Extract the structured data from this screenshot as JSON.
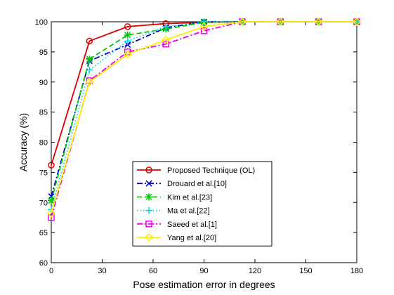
{
  "chart_data": {
    "type": "line",
    "xlabel": "Pose estimation error in degrees",
    "ylabel": "Accuracy (%)",
    "xlim": [
      0,
      180
    ],
    "ylim": [
      60,
      100
    ],
    "xticks": [
      0,
      30,
      60,
      90,
      120,
      150,
      180
    ],
    "yticks": [
      60,
      65,
      70,
      75,
      80,
      85,
      90,
      95,
      100
    ],
    "x": [
      0,
      22.5,
      45,
      67.5,
      90,
      112.5,
      135,
      157.5,
      180
    ],
    "legend_position": "bottom-center",
    "grid": false,
    "series": [
      {
        "name": "Proposed Technique (OL)",
        "color": "#dd0000",
        "dash": "solid",
        "marker": "circle",
        "values": [
          76.2,
          96.8,
          99.2,
          99.7,
          99.9,
          100,
          100,
          100,
          100
        ]
      },
      {
        "name": "Drouard et al.[10]",
        "color": "#0000cc",
        "dash": "dashdot",
        "marker": "x",
        "values": [
          71.0,
          93.5,
          96.2,
          99.0,
          100,
          100,
          100,
          100,
          100
        ]
      },
      {
        "name": "Kim et al.[23]",
        "color": "#00cc00",
        "dash": "dashed",
        "marker": "star",
        "values": [
          70.3,
          93.8,
          97.8,
          98.8,
          99.9,
          100,
          100,
          100,
          100
        ]
      },
      {
        "name": "Ma et al.[22]",
        "color": "#00dddd",
        "dash": "dotted",
        "marker": "plus",
        "values": [
          68.8,
          92.0,
          96.8,
          99.2,
          100,
          100,
          100,
          100,
          100
        ]
      },
      {
        "name": "Saeed et al.[1]",
        "color": "#ee00ee",
        "dash": "dashdot",
        "marker": "square",
        "values": [
          67.5,
          90.2,
          95.0,
          96.3,
          98.5,
          100,
          100,
          100,
          100
        ]
      },
      {
        "name": "Yang et al.[20]",
        "color": "#ffee00",
        "dash": "solid",
        "marker": "diamond",
        "values": [
          68.2,
          90.0,
          94.6,
          97.0,
          99.2,
          100,
          100,
          100,
          100
        ]
      }
    ]
  }
}
